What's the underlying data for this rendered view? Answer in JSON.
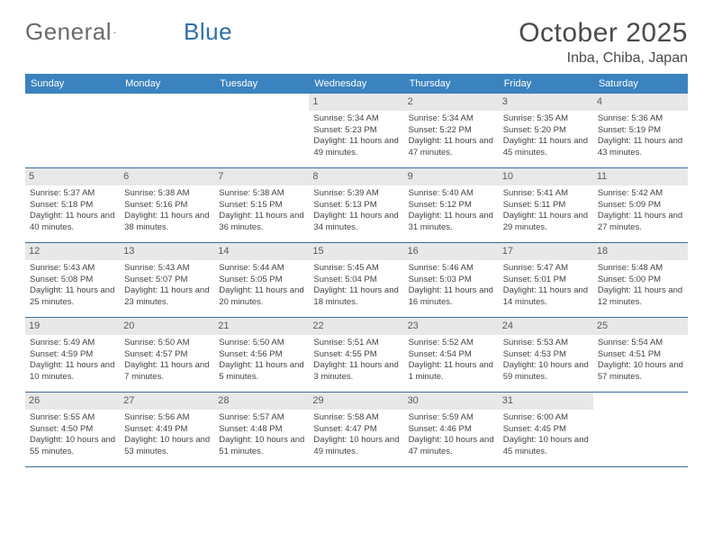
{
  "logo": {
    "text1": "General",
    "text2": "Blue",
    "accent": "#2f6fa8"
  },
  "title": "October 2025",
  "location": "Inba, Chiba, Japan",
  "colors": {
    "header_bg": "#3b83bf",
    "header_text": "#ffffff",
    "daynum_bg": "#e8e8e8",
    "row_border": "#3b6d9b",
    "body_text": "#444444"
  },
  "weekdays": [
    "Sunday",
    "Monday",
    "Tuesday",
    "Wednesday",
    "Thursday",
    "Friday",
    "Saturday"
  ],
  "weeks": [
    [
      {
        "n": "",
        "lines": []
      },
      {
        "n": "",
        "lines": []
      },
      {
        "n": "",
        "lines": []
      },
      {
        "n": "1",
        "lines": [
          "Sunrise: 5:34 AM",
          "Sunset: 5:23 PM",
          "Daylight: 11 hours and 49 minutes."
        ]
      },
      {
        "n": "2",
        "lines": [
          "Sunrise: 5:34 AM",
          "Sunset: 5:22 PM",
          "Daylight: 11 hours and 47 minutes."
        ]
      },
      {
        "n": "3",
        "lines": [
          "Sunrise: 5:35 AM",
          "Sunset: 5:20 PM",
          "Daylight: 11 hours and 45 minutes."
        ]
      },
      {
        "n": "4",
        "lines": [
          "Sunrise: 5:36 AM",
          "Sunset: 5:19 PM",
          "Daylight: 11 hours and 43 minutes."
        ]
      }
    ],
    [
      {
        "n": "5",
        "lines": [
          "Sunrise: 5:37 AM",
          "Sunset: 5:18 PM",
          "Daylight: 11 hours and 40 minutes."
        ]
      },
      {
        "n": "6",
        "lines": [
          "Sunrise: 5:38 AM",
          "Sunset: 5:16 PM",
          "Daylight: 11 hours and 38 minutes."
        ]
      },
      {
        "n": "7",
        "lines": [
          "Sunrise: 5:38 AM",
          "Sunset: 5:15 PM",
          "Daylight: 11 hours and 36 minutes."
        ]
      },
      {
        "n": "8",
        "lines": [
          "Sunrise: 5:39 AM",
          "Sunset: 5:13 PM",
          "Daylight: 11 hours and 34 minutes."
        ]
      },
      {
        "n": "9",
        "lines": [
          "Sunrise: 5:40 AM",
          "Sunset: 5:12 PM",
          "Daylight: 11 hours and 31 minutes."
        ]
      },
      {
        "n": "10",
        "lines": [
          "Sunrise: 5:41 AM",
          "Sunset: 5:11 PM",
          "Daylight: 11 hours and 29 minutes."
        ]
      },
      {
        "n": "11",
        "lines": [
          "Sunrise: 5:42 AM",
          "Sunset: 5:09 PM",
          "Daylight: 11 hours and 27 minutes."
        ]
      }
    ],
    [
      {
        "n": "12",
        "lines": [
          "Sunrise: 5:43 AM",
          "Sunset: 5:08 PM",
          "Daylight: 11 hours and 25 minutes."
        ]
      },
      {
        "n": "13",
        "lines": [
          "Sunrise: 5:43 AM",
          "Sunset: 5:07 PM",
          "Daylight: 11 hours and 23 minutes."
        ]
      },
      {
        "n": "14",
        "lines": [
          "Sunrise: 5:44 AM",
          "Sunset: 5:05 PM",
          "Daylight: 11 hours and 20 minutes."
        ]
      },
      {
        "n": "15",
        "lines": [
          "Sunrise: 5:45 AM",
          "Sunset: 5:04 PM",
          "Daylight: 11 hours and 18 minutes."
        ]
      },
      {
        "n": "16",
        "lines": [
          "Sunrise: 5:46 AM",
          "Sunset: 5:03 PM",
          "Daylight: 11 hours and 16 minutes."
        ]
      },
      {
        "n": "17",
        "lines": [
          "Sunrise: 5:47 AM",
          "Sunset: 5:01 PM",
          "Daylight: 11 hours and 14 minutes."
        ]
      },
      {
        "n": "18",
        "lines": [
          "Sunrise: 5:48 AM",
          "Sunset: 5:00 PM",
          "Daylight: 11 hours and 12 minutes."
        ]
      }
    ],
    [
      {
        "n": "19",
        "lines": [
          "Sunrise: 5:49 AM",
          "Sunset: 4:59 PM",
          "Daylight: 11 hours and 10 minutes."
        ]
      },
      {
        "n": "20",
        "lines": [
          "Sunrise: 5:50 AM",
          "Sunset: 4:57 PM",
          "Daylight: 11 hours and 7 minutes."
        ]
      },
      {
        "n": "21",
        "lines": [
          "Sunrise: 5:50 AM",
          "Sunset: 4:56 PM",
          "Daylight: 11 hours and 5 minutes."
        ]
      },
      {
        "n": "22",
        "lines": [
          "Sunrise: 5:51 AM",
          "Sunset: 4:55 PM",
          "Daylight: 11 hours and 3 minutes."
        ]
      },
      {
        "n": "23",
        "lines": [
          "Sunrise: 5:52 AM",
          "Sunset: 4:54 PM",
          "Daylight: 11 hours and 1 minute."
        ]
      },
      {
        "n": "24",
        "lines": [
          "Sunrise: 5:53 AM",
          "Sunset: 4:53 PM",
          "Daylight: 10 hours and 59 minutes."
        ]
      },
      {
        "n": "25",
        "lines": [
          "Sunrise: 5:54 AM",
          "Sunset: 4:51 PM",
          "Daylight: 10 hours and 57 minutes."
        ]
      }
    ],
    [
      {
        "n": "26",
        "lines": [
          "Sunrise: 5:55 AM",
          "Sunset: 4:50 PM",
          "Daylight: 10 hours and 55 minutes."
        ]
      },
      {
        "n": "27",
        "lines": [
          "Sunrise: 5:56 AM",
          "Sunset: 4:49 PM",
          "Daylight: 10 hours and 53 minutes."
        ]
      },
      {
        "n": "28",
        "lines": [
          "Sunrise: 5:57 AM",
          "Sunset: 4:48 PM",
          "Daylight: 10 hours and 51 minutes."
        ]
      },
      {
        "n": "29",
        "lines": [
          "Sunrise: 5:58 AM",
          "Sunset: 4:47 PM",
          "Daylight: 10 hours and 49 minutes."
        ]
      },
      {
        "n": "30",
        "lines": [
          "Sunrise: 5:59 AM",
          "Sunset: 4:46 PM",
          "Daylight: 10 hours and 47 minutes."
        ]
      },
      {
        "n": "31",
        "lines": [
          "Sunrise: 6:00 AM",
          "Sunset: 4:45 PM",
          "Daylight: 10 hours and 45 minutes."
        ]
      },
      {
        "n": "",
        "lines": []
      }
    ]
  ]
}
